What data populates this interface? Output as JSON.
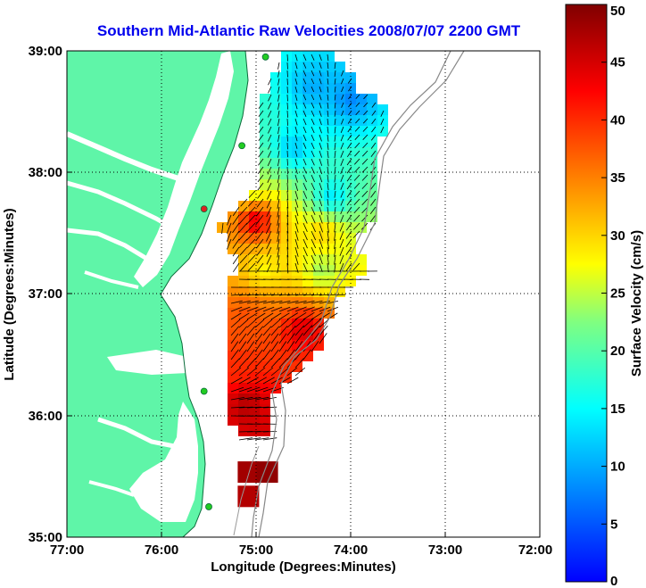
{
  "title": "Southern Mid-Atlantic Raw Velocities 2008/07/07 2200 GMT",
  "x_axis": {
    "label": "Longitude (Degrees:Minutes)",
    "ticks": [
      "77:00",
      "76:00",
      "75:00",
      "74:00",
      "73:00",
      "72:00"
    ]
  },
  "y_axis": {
    "label": "Latitude (Degrees:Minutes)",
    "ticks": [
      "39:00",
      "38:00",
      "37:00",
      "36:00",
      "35:00"
    ]
  },
  "colorbar": {
    "label": "Surface Velocity (cm/s)",
    "ticks": [
      "50",
      "45",
      "40",
      "35",
      "30",
      "25",
      "20",
      "15",
      "10",
      "5",
      "0"
    ],
    "min": 0,
    "max": 50,
    "colormap": "jet"
  },
  "map": {
    "lon_range": [
      -77,
      -72
    ],
    "lat_range": [
      35,
      39
    ],
    "gridlines": "dotted",
    "land_color": "#5ff5a8",
    "water_color": "#ffffff",
    "station_marker_color": "#22cc22",
    "highlight_marker_color": "#dd2222"
  },
  "chart_data": {
    "type": "heatmap",
    "title": "Southern Mid-Atlantic Raw Velocities 2008/07/07 2200 GMT",
    "xlabel": "Longitude (Degrees:Minutes)",
    "ylabel": "Latitude (Degrees:Minutes)",
    "xlim": [
      -77,
      -72
    ],
    "ylim": [
      35,
      39
    ],
    "value_label": "Surface Velocity (cm/s)",
    "value_range": [
      0,
      50
    ],
    "regions": [
      {
        "lon": -74.4,
        "lat": 38.7,
        "speed": 10
      },
      {
        "lon": -74.0,
        "lat": 38.6,
        "speed": 8
      },
      {
        "lon": -74.6,
        "lat": 38.2,
        "speed": 12
      },
      {
        "lon": -74.2,
        "lat": 37.8,
        "speed": 14
      },
      {
        "lon": -75.1,
        "lat": 38.4,
        "speed": 18
      },
      {
        "lon": -75.1,
        "lat": 37.9,
        "speed": 24
      },
      {
        "lon": -75.0,
        "lat": 37.6,
        "speed": 44
      },
      {
        "lon": -74.3,
        "lat": 37.5,
        "speed": 30
      },
      {
        "lon": -74.9,
        "lat": 37.2,
        "speed": 28
      },
      {
        "lon": -74.3,
        "lat": 37.2,
        "speed": 24
      },
      {
        "lon": -75.1,
        "lat": 36.8,
        "speed": 38
      },
      {
        "lon": -74.5,
        "lat": 36.7,
        "speed": 45
      },
      {
        "lon": -75.2,
        "lat": 36.4,
        "speed": 40
      },
      {
        "lon": -75.1,
        "lat": 36.1,
        "speed": 47
      },
      {
        "lon": -74.9,
        "lat": 35.6,
        "speed": 49
      }
    ],
    "stations": [
      {
        "lon": -74.9,
        "lat": 38.95
      },
      {
        "lon": -75.15,
        "lat": 38.22
      },
      {
        "lon": -75.55,
        "lat": 37.7
      },
      {
        "lon": -75.55,
        "lat": 36.2
      },
      {
        "lon": -75.5,
        "lat": 35.25
      }
    ]
  }
}
